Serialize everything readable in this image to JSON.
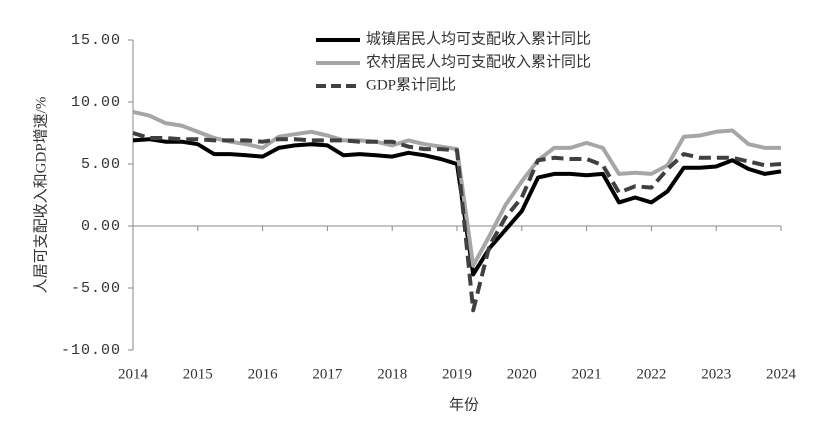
{
  "chart_data": {
    "type": "line",
    "x_label": "年份",
    "y_label": "人居可支配收入和GDP增速/%",
    "categories": [
      "2014",
      null,
      null,
      null,
      "2015",
      null,
      null,
      null,
      "2016",
      null,
      null,
      null,
      "2017",
      null,
      null,
      null,
      "2018",
      null,
      null,
      null,
      "2019",
      null,
      null,
      null,
      "2020",
      null,
      null,
      null,
      "2021",
      null,
      null,
      null,
      "2022",
      null,
      null,
      null,
      "2023",
      null,
      null,
      null,
      "2024"
    ],
    "series": [
      {
        "name": "城镇居民人均可支配收入累计同比",
        "color": "#000000",
        "dash": false,
        "values": [
          6.9,
          7.0,
          6.8,
          6.8,
          6.6,
          5.8,
          5.8,
          5.7,
          5.6,
          6.3,
          6.5,
          6.6,
          6.5,
          5.7,
          5.8,
          5.7,
          5.6,
          5.9,
          5.7,
          5.4,
          5.0,
          -3.9,
          -1.8,
          -0.3,
          1.2,
          3.9,
          4.2,
          4.2,
          4.1,
          4.2,
          1.9,
          2.3,
          1.9,
          2.8,
          4.7,
          4.7,
          4.8,
          5.3,
          4.6,
          4.2,
          4.4
        ]
      },
      {
        "name": "农村居民人均可支配收入累计同比",
        "color": "#a6a6a6",
        "dash": false,
        "values": [
          9.2,
          8.9,
          8.3,
          8.1,
          7.6,
          7.1,
          6.8,
          6.6,
          6.3,
          7.2,
          7.4,
          7.6,
          7.3,
          6.9,
          6.9,
          6.8,
          6.5,
          6.9,
          6.6,
          6.4,
          6.2,
          -3.2,
          -0.8,
          1.7,
          3.6,
          5.3,
          6.3,
          6.3,
          6.7,
          6.3,
          4.2,
          4.3,
          4.2,
          4.9,
          7.2,
          7.3,
          7.6,
          7.7,
          6.6,
          6.3,
          6.3
        ]
      },
      {
        "name": "GDP累计同比",
        "color": "#404040",
        "dash": true,
        "values": [
          7.5,
          7.1,
          7.1,
          7.0,
          7.0,
          6.9,
          6.9,
          6.9,
          6.8,
          7.0,
          7.0,
          6.9,
          6.9,
          6.9,
          6.8,
          6.8,
          6.8,
          6.4,
          6.2,
          6.2,
          6.1,
          -6.8,
          -1.6,
          0.7,
          2.3,
          5.3,
          5.5,
          5.4,
          5.4,
          4.9,
          2.7,
          3.2,
          3.1,
          4.6,
          5.8,
          5.5,
          5.5,
          5.5,
          5.2,
          4.9,
          5.0
        ]
      }
    ],
    "ylim": [
      -10,
      15
    ],
    "yticks": [
      {
        "value": -10,
        "label": "-10.00"
      },
      {
        "value": -5,
        "label": "-5.00"
      },
      {
        "value": 0,
        "label": "0.00"
      },
      {
        "value": 5,
        "label": "5.00"
      },
      {
        "value": 10,
        "label": "10.00"
      },
      {
        "value": 15,
        "label": "15.00"
      }
    ],
    "grid": false,
    "legend": "top"
  }
}
